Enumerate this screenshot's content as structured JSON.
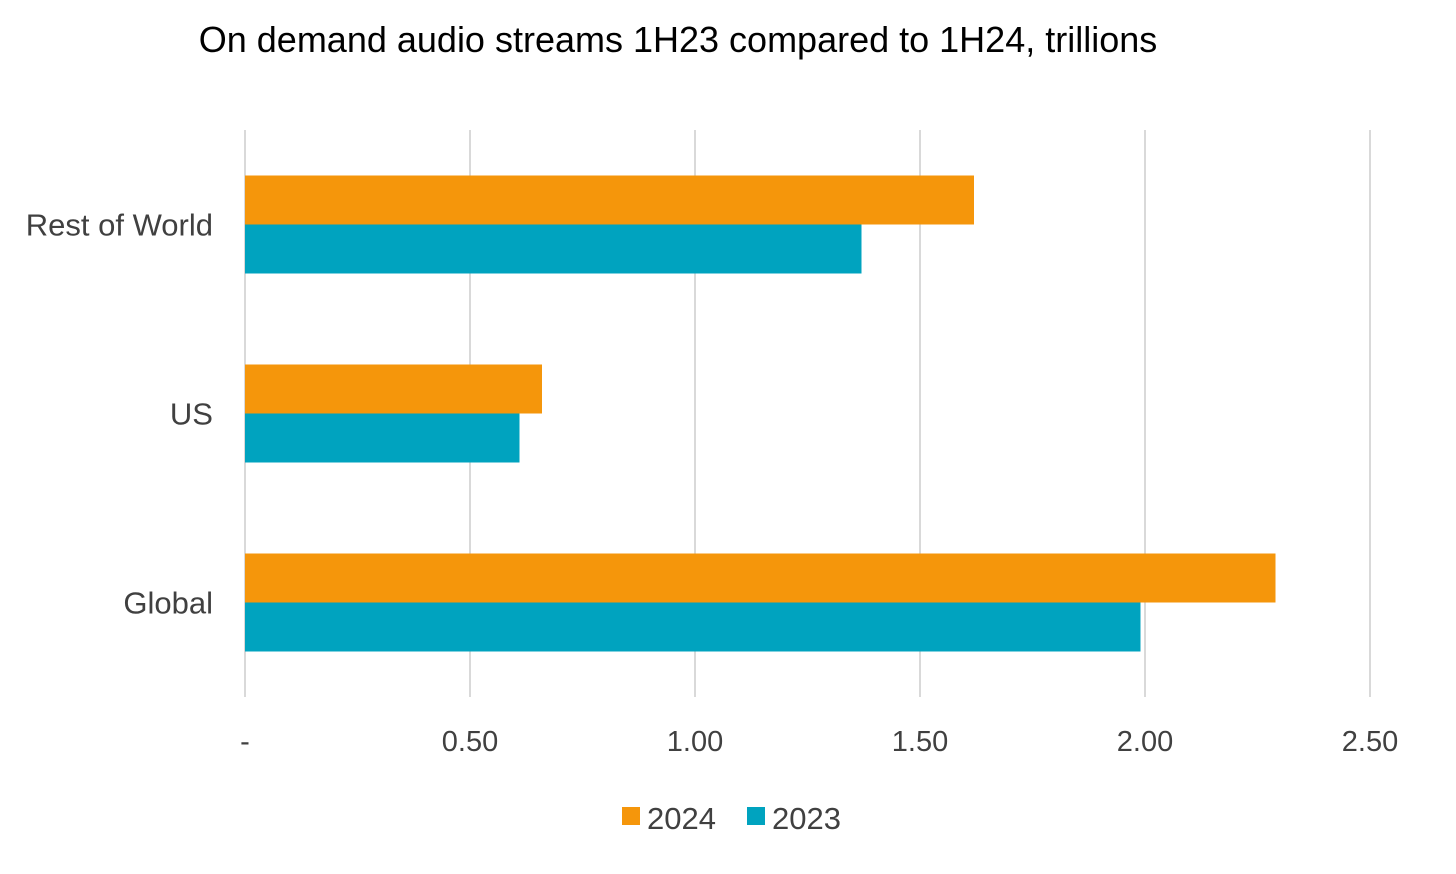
{
  "chart_data": {
    "type": "bar",
    "orientation": "horizontal",
    "title": "On demand audio streams 1H23 compared to 1H24, trillions",
    "categories": [
      "Rest of World",
      "US",
      "Global"
    ],
    "series": [
      {
        "name": "2024",
        "values": [
          1.62,
          0.66,
          2.29
        ],
        "color": "#F5960B"
      },
      {
        "name": "2023",
        "values": [
          1.37,
          0.61,
          1.99
        ],
        "color": "#00A3BF"
      }
    ],
    "xlim": [
      0,
      2.5
    ],
    "xticks": [
      0,
      0.5,
      1.0,
      1.5,
      2.0,
      2.5
    ],
    "xtick_labels": [
      "-",
      "0.50",
      "1.00",
      "1.50",
      "2.00",
      "2.50"
    ],
    "xlabel": "",
    "ylabel": "",
    "grid": "vertical",
    "legend_position": "bottom"
  }
}
